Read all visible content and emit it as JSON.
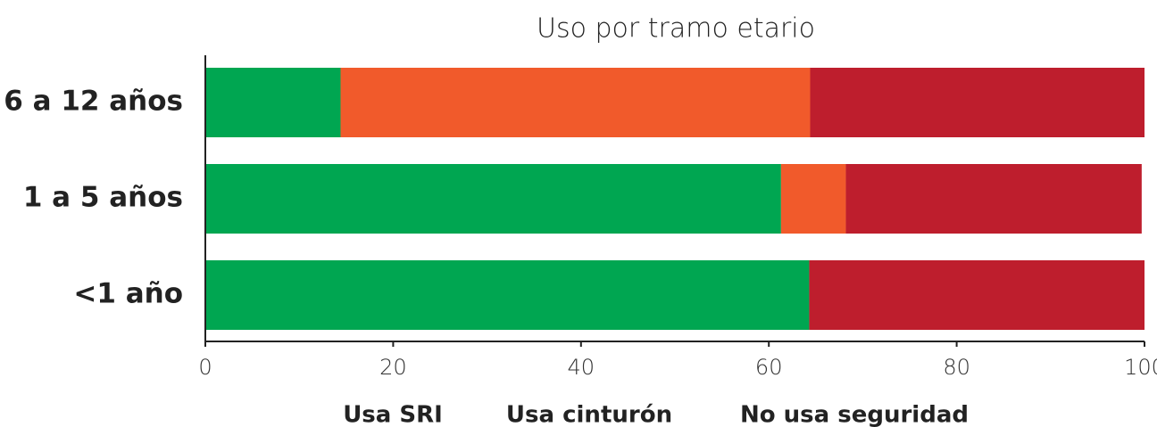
{
  "chart_data": {
    "type": "stacked-bar-horizontal",
    "title": "Uso por tramo etario",
    "categories": [
      "6 a 12 años",
      "1 a 5 años",
      "<1 año"
    ],
    "series": [
      {
        "name": "Usa SRI",
        "color": "#00a651",
        "values": [
          14.4,
          61.3,
          64.3
        ]
      },
      {
        "name": "Usa cinturón",
        "color": "#f15a2b",
        "values": [
          50.0,
          6.9,
          0
        ]
      },
      {
        "name": "No usa seguridad",
        "color": "#be1e2d",
        "values": [
          35.6,
          31.5,
          35.7
        ]
      }
    ],
    "xlim": [
      0,
      100
    ],
    "xticks": [
      0,
      20,
      40,
      60,
      80,
      100
    ],
    "grid": false
  }
}
